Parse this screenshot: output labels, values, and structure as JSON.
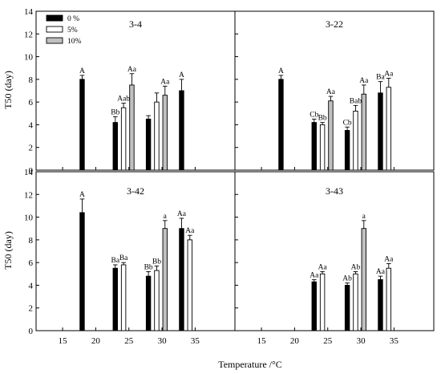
{
  "chart_data": {
    "type": "bar",
    "xlabel": "Temperature /°C",
    "ylabel": "T50 (day)",
    "xlim": [
      11,
      41
    ],
    "ylim": [
      0,
      14
    ],
    "xticks": [
      15,
      20,
      25,
      30,
      35
    ],
    "yticks": [
      0,
      2,
      4,
      6,
      8,
      10,
      12,
      14
    ],
    "x_tick_labels": [
      "15",
      "20",
      "25",
      "30",
      "35"
    ],
    "y_tick_labels": [
      "0",
      "2",
      "4",
      "6",
      "8",
      "10",
      "12",
      "14"
    ],
    "temperatures": [
      18,
      23,
      28,
      33
    ],
    "legend": {
      "placement": "top-left",
      "entries": [
        "0 %",
        "5%",
        "10%"
      ]
    },
    "series_colors": [
      "#000000",
      "#ffffff",
      "#c0c0c0"
    ],
    "panels": [
      {
        "title": "3-4",
        "series": [
          {
            "values": [
              8.0,
              4.2,
              4.5,
              7.0
            ],
            "errors": [
              0.35,
              0.5,
              0.3,
              1.0
            ],
            "labels": [
              "A",
              "Bb",
              "",
              "A"
            ]
          },
          {
            "values": [
              null,
              5.5,
              6.0,
              null
            ],
            "errors": [
              null,
              0.4,
              0.8,
              null
            ],
            "labels": [
              "",
              "Aab",
              "",
              ""
            ]
          },
          {
            "values": [
              null,
              7.5,
              6.6,
              null
            ],
            "errors": [
              null,
              1.0,
              0.8,
              null
            ],
            "labels": [
              "",
              "Aa",
              "Aa",
              ""
            ]
          }
        ]
      },
      {
        "title": "3-22",
        "series": [
          {
            "values": [
              8.0,
              4.2,
              3.5,
              6.8
            ],
            "errors": [
              0.35,
              0.3,
              0.3,
              1.0
            ],
            "labels": [
              "A",
              "Cb",
              "Cb",
              "Ba"
            ]
          },
          {
            "values": [
              null,
              4.0,
              5.2,
              7.3
            ],
            "errors": [
              null,
              0.2,
              0.5,
              0.8
            ],
            "labels": [
              "",
              "Bb",
              "Bab",
              "Aa"
            ]
          },
          {
            "values": [
              null,
              6.1,
              6.7,
              null
            ],
            "errors": [
              null,
              0.4,
              0.8,
              null
            ],
            "labels": [
              "",
              "Aa",
              "Aa",
              ""
            ]
          }
        ]
      },
      {
        "title": "3-42",
        "series": [
          {
            "values": [
              10.4,
              5.5,
              4.8,
              9.0
            ],
            "errors": [
              1.2,
              0.3,
              0.4,
              0.9
            ],
            "labels": [
              "A",
              "Ba",
              "Bb",
              "Aa"
            ]
          },
          {
            "values": [
              null,
              5.8,
              5.3,
              8.0
            ],
            "errors": [
              null,
              0.2,
              0.4,
              0.4
            ],
            "labels": [
              "",
              "Ba",
              "Bb",
              "Aa"
            ]
          },
          {
            "values": [
              null,
              null,
              9.0,
              null
            ],
            "errors": [
              null,
              null,
              0.7,
              null
            ],
            "labels": [
              "",
              "",
              "a",
              ""
            ]
          }
        ]
      },
      {
        "title": "3-43",
        "series": [
          {
            "values": [
              null,
              4.3,
              4.0,
              4.5
            ],
            "errors": [
              null,
              0.2,
              0.2,
              0.3
            ],
            "labels": [
              "",
              "Aa",
              "Ab",
              "Aa"
            ]
          },
          {
            "values": [
              null,
              5.0,
              5.0,
              5.5
            ],
            "errors": [
              null,
              0.2,
              0.2,
              0.4
            ],
            "labels": [
              "",
              "Aa",
              "Ab",
              "Aa"
            ]
          },
          {
            "values": [
              null,
              null,
              9.0,
              null
            ],
            "errors": [
              null,
              null,
              0.7,
              null
            ],
            "labels": [
              "",
              "",
              "a",
              ""
            ]
          }
        ]
      }
    ]
  }
}
